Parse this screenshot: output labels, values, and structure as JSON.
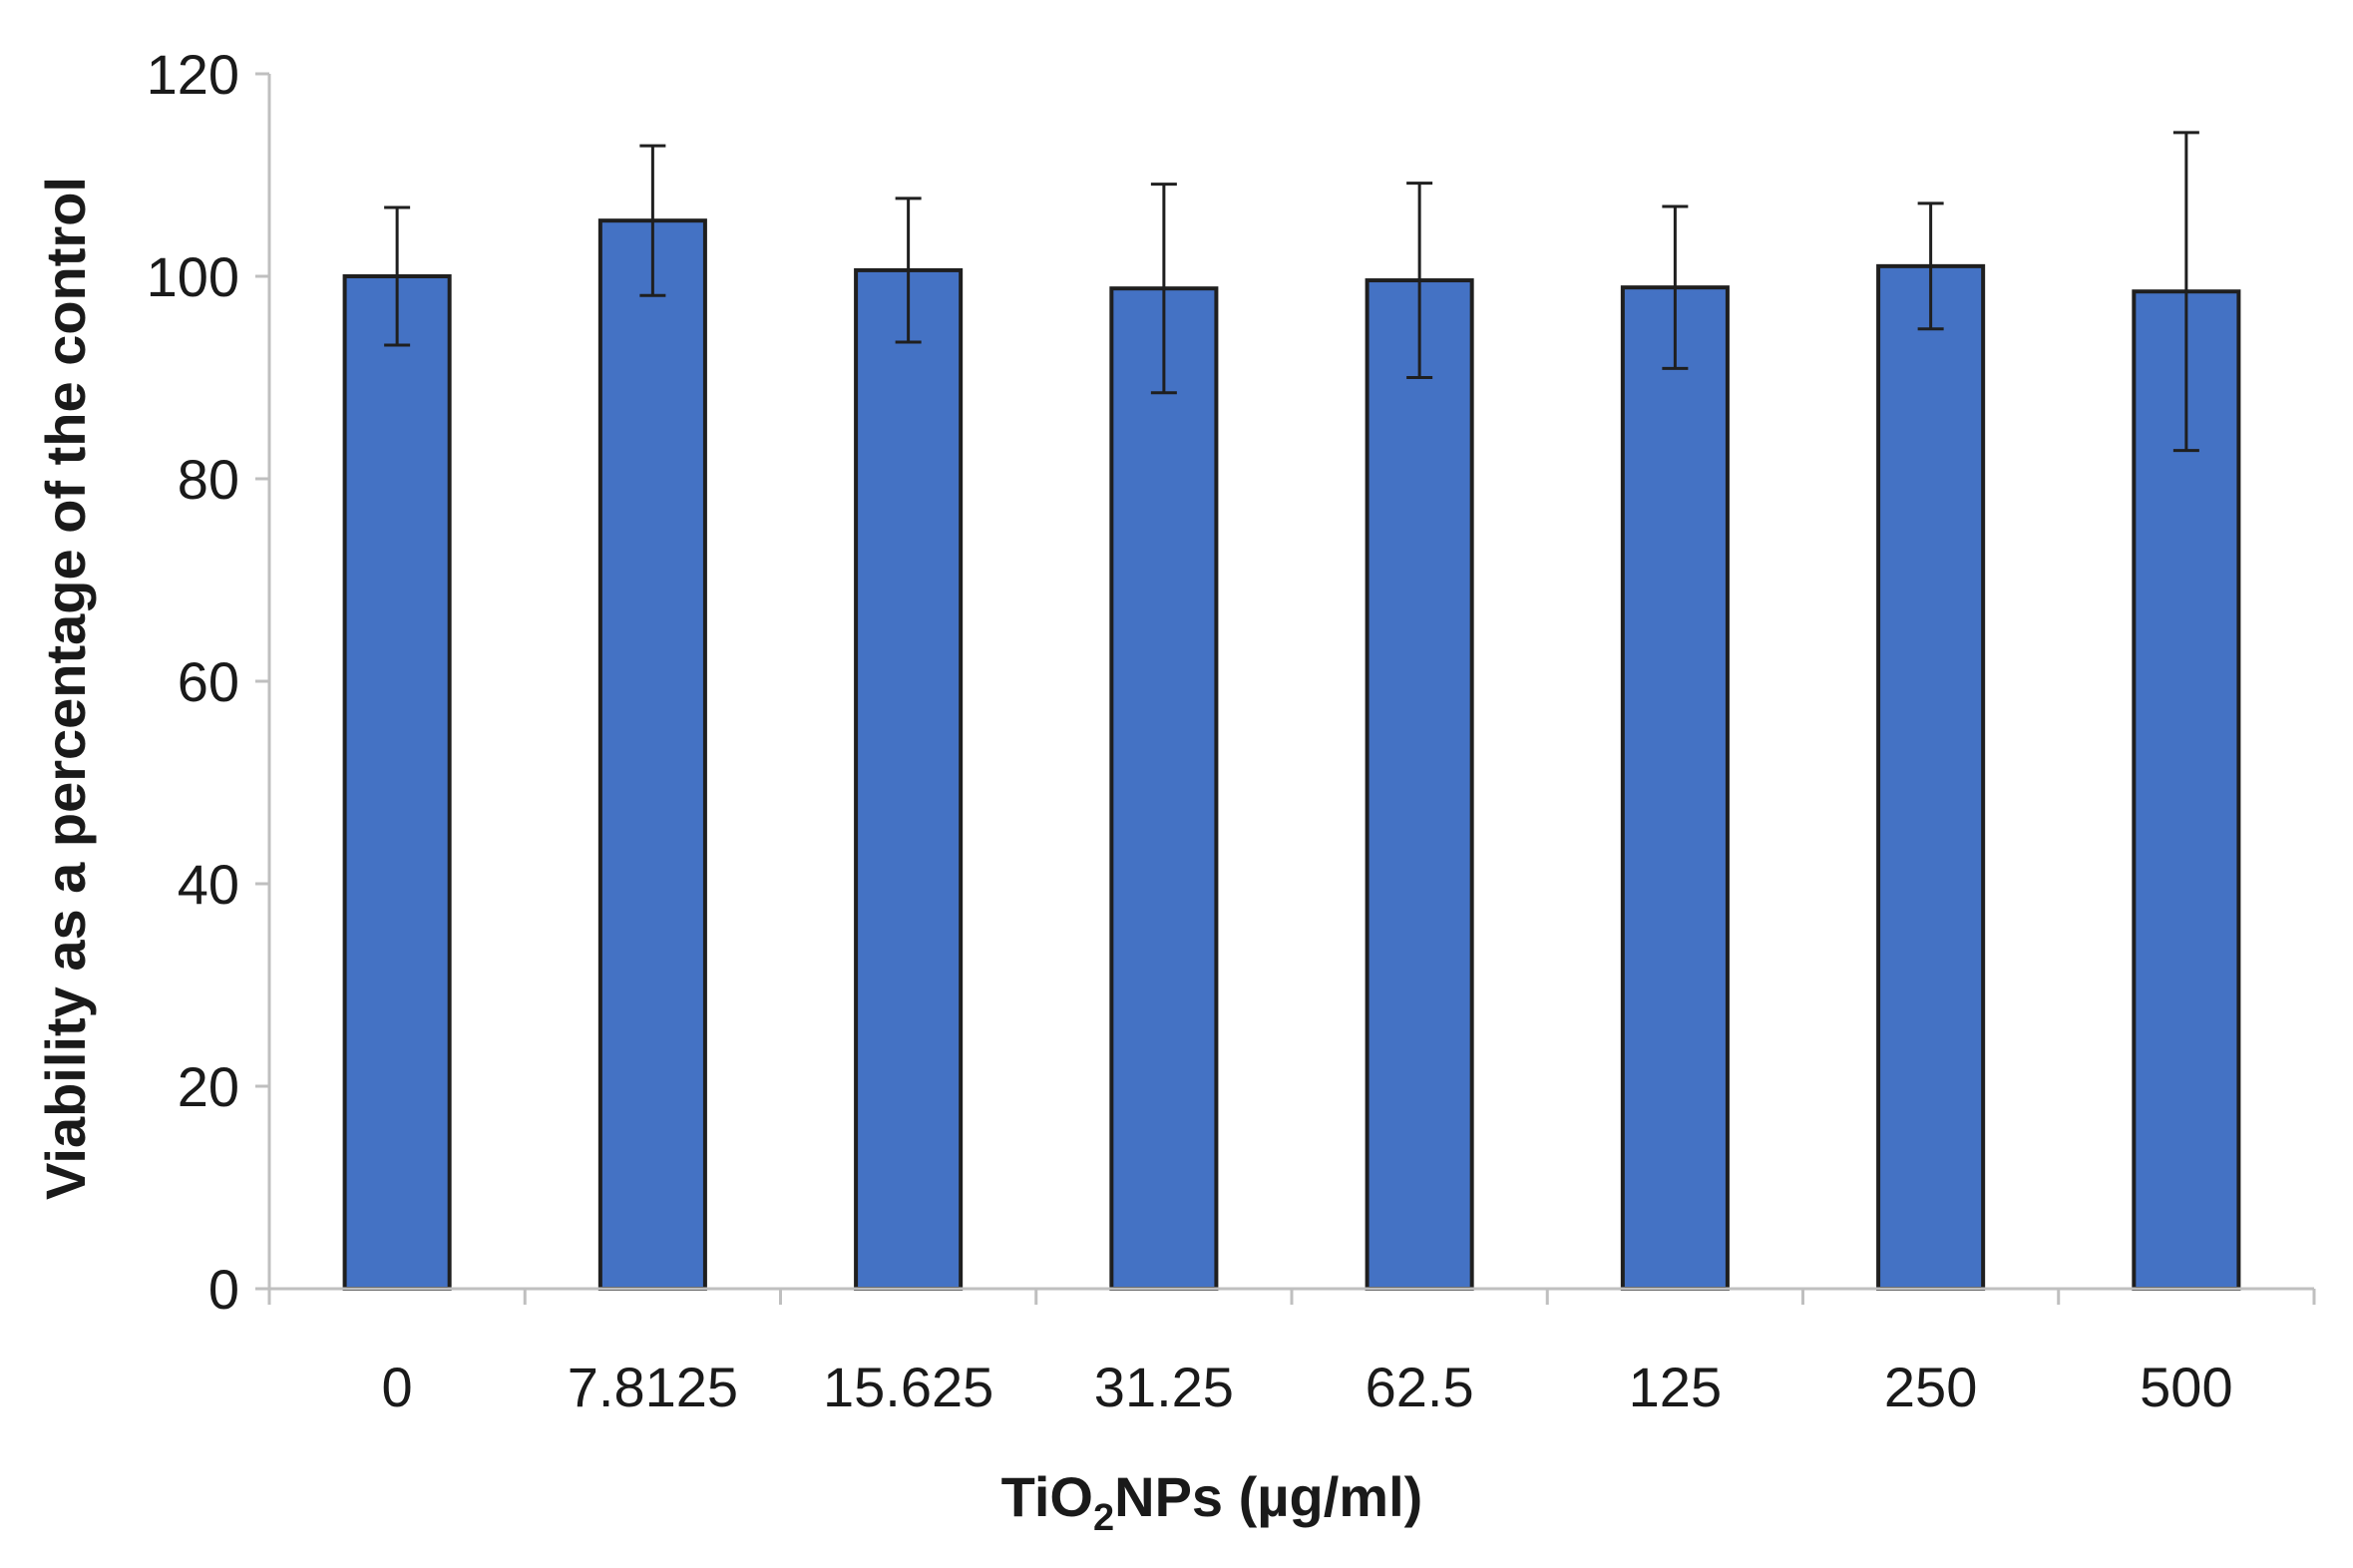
{
  "chart_data": {
    "type": "bar",
    "title": "",
    "categories": [
      "0",
      "7.8125",
      "15.625",
      "31.25",
      "62.5",
      "125",
      "250",
      "500"
    ],
    "values": [
      100,
      105.5,
      100.6,
      98.8,
      99.6,
      98.9,
      101,
      98.5
    ],
    "errors": [
      6.8,
      7.4,
      7.1,
      10.3,
      9.6,
      8.0,
      6.2,
      15.7
    ],
    "xlabel": {
      "main": "TiO",
      "sub": "2",
      "rest": "NPs (µg/ml)"
    },
    "ylabel": "Viability as a percentage of the control",
    "ylim": [
      0,
      120
    ],
    "yticks": [
      0,
      20,
      40,
      60,
      80,
      100,
      120
    ],
    "grid": false,
    "legend": "none",
    "bar_color": "#4472C4",
    "bar_edge_color": "#1f1f1f",
    "axis_color": "#bfbfbf",
    "error_bar_color": "#1f1f1f"
  }
}
